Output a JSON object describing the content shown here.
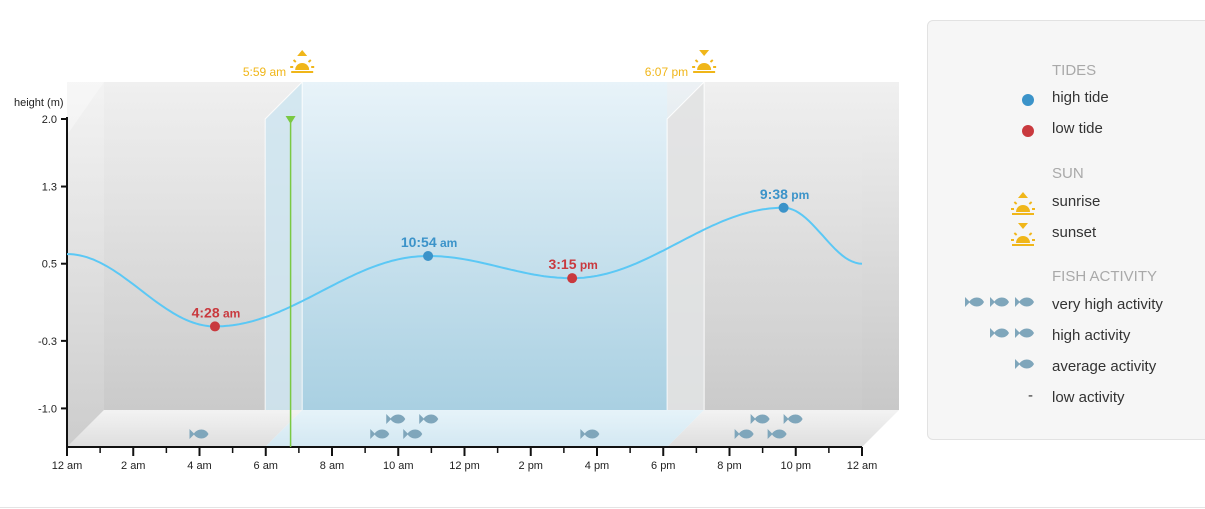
{
  "chart_data": {
    "type": "line",
    "ylabel": "height (m)",
    "ylim": [
      -1.4,
      2.0
    ],
    "yticks": [
      2.0,
      1.3,
      0.5,
      -0.3,
      -1.0
    ],
    "ytick_labels": [
      "2.0",
      "1.3",
      "0.5",
      "-0.3",
      "-1.0"
    ],
    "xlim_hours": [
      0,
      24
    ],
    "xtick_labels": [
      "12 am",
      "2 am",
      "4 am",
      "6 am",
      "8 am",
      "10 am",
      "12 pm",
      "2 pm",
      "4 pm",
      "6 pm",
      "8 pm",
      "10 pm",
      "12 am"
    ],
    "current_time_hour": 6.75,
    "series_color": "#5bc8f5",
    "tide_extremes": [
      {
        "type": "low",
        "hour": 4.467,
        "height": -0.15,
        "time": "4:28",
        "ampm": "am"
      },
      {
        "type": "high",
        "hour": 10.9,
        "height": 0.58,
        "time": "10:54",
        "ampm": "am"
      },
      {
        "type": "low",
        "hour": 15.25,
        "height": 0.35,
        "time": "3:15",
        "ampm": "pm"
      },
      {
        "type": "high",
        "hour": 21.633,
        "height": 1.08,
        "time": "9:38",
        "ampm": "pm"
      }
    ],
    "tide_curve": {
      "hours": [
        0,
        4.467,
        10.9,
        15.25,
        21.633,
        24
      ],
      "heights": [
        0.6,
        -0.15,
        0.58,
        0.35,
        1.08,
        0.5
      ]
    },
    "sun": {
      "sunrise": {
        "hour": 5.983,
        "label": "5:59 am"
      },
      "sunset": {
        "hour": 18.117,
        "label": "6:07 pm"
      }
    },
    "fish_activity": [
      {
        "hour": 4.0,
        "level": "average"
      },
      {
        "hour": 10.0,
        "level": "very high"
      },
      {
        "hour": 15.8,
        "level": "average"
      },
      {
        "hour": 21.0,
        "level": "very high"
      }
    ],
    "colors": {
      "high": "#3b93c9",
      "low": "#c9393e",
      "sun": "#f0b619",
      "fish": "#7fa6bb",
      "now": "#7ac943"
    }
  },
  "legend": {
    "tides_heading": "TIDES",
    "high_tide": "high tide",
    "low_tide": "low tide",
    "sun_heading": "SUN",
    "sunrise": "sunrise",
    "sunset": "sunset",
    "fish_heading": "FISH ACTIVITY",
    "very_high": "very high activity",
    "high": "high activity",
    "average": "average activity",
    "low_symbol": "-",
    "low": "low activity"
  }
}
